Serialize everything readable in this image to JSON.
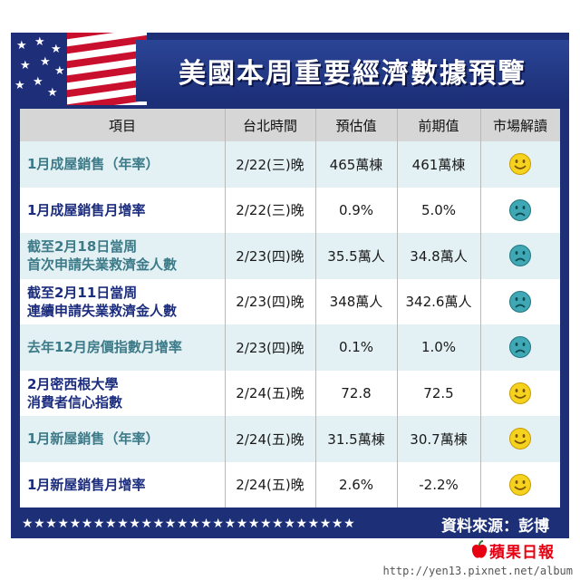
{
  "title": "美國本周重要經濟數據預覽",
  "headers": [
    "項目",
    "台北時間",
    "預估值",
    "前期值",
    "市場解讀"
  ],
  "rows": [
    {
      "item": [
        "1月成屋銷售（年率）"
      ],
      "time": "2/22(三)晚",
      "forecast": "465萬棟",
      "previous": "461萬棟",
      "outlook": "smile"
    },
    {
      "item": [
        "1月成屋銷售月增率"
      ],
      "time": "2/22(三)晚",
      "forecast": "0.9%",
      "previous": "5.0%",
      "outlook": "sad"
    },
    {
      "item": [
        "截至2月18日當周",
        "首次申請失業救濟金人數"
      ],
      "time": "2/23(四)晚",
      "forecast": "35.5萬人",
      "previous": "34.8萬人",
      "outlook": "sad"
    },
    {
      "item": [
        "截至2月11日當周",
        "連續申請失業救濟金人數"
      ],
      "time": "2/23(四)晚",
      "forecast": "348萬人",
      "previous": "342.6萬人",
      "outlook": "sad"
    },
    {
      "item": [
        "去年12月房價指數月增率"
      ],
      "time": "2/23(四)晚",
      "forecast": "0.1%",
      "previous": "1.0%",
      "outlook": "sad"
    },
    {
      "item": [
        "2月密西根大學",
        "消費者信心指數"
      ],
      "time": "2/24(五)晚",
      "forecast": "72.8",
      "previous": "72.5",
      "outlook": "smile"
    },
    {
      "item": [
        "1月新屋銷售（年率）"
      ],
      "time": "2/24(五)晚",
      "forecast": "31.5萬棟",
      "previous": "30.7萬棟",
      "outlook": "smile"
    },
    {
      "item": [
        "1月新屋銷售月增率"
      ],
      "time": "2/24(五)晚",
      "forecast": "2.6%",
      "previous": "-2.2%",
      "outlook": "smile"
    }
  ],
  "footer": {
    "stars": "★★★★★★★★★★★★★★★★★★★★★★★★★★★★",
    "source": "資料來源：彭博"
  },
  "logo": "蘋果日報",
  "watermark": "http://yen13.pixnet.net/album",
  "colors": {
    "navy": "#1c2f77",
    "row_tint": "#e3f1f5",
    "header_gray": "#d6d6d6",
    "smile_face": "#f4d21e",
    "sad_face": "#3fa8b4",
    "logo_red": "#e60012"
  }
}
